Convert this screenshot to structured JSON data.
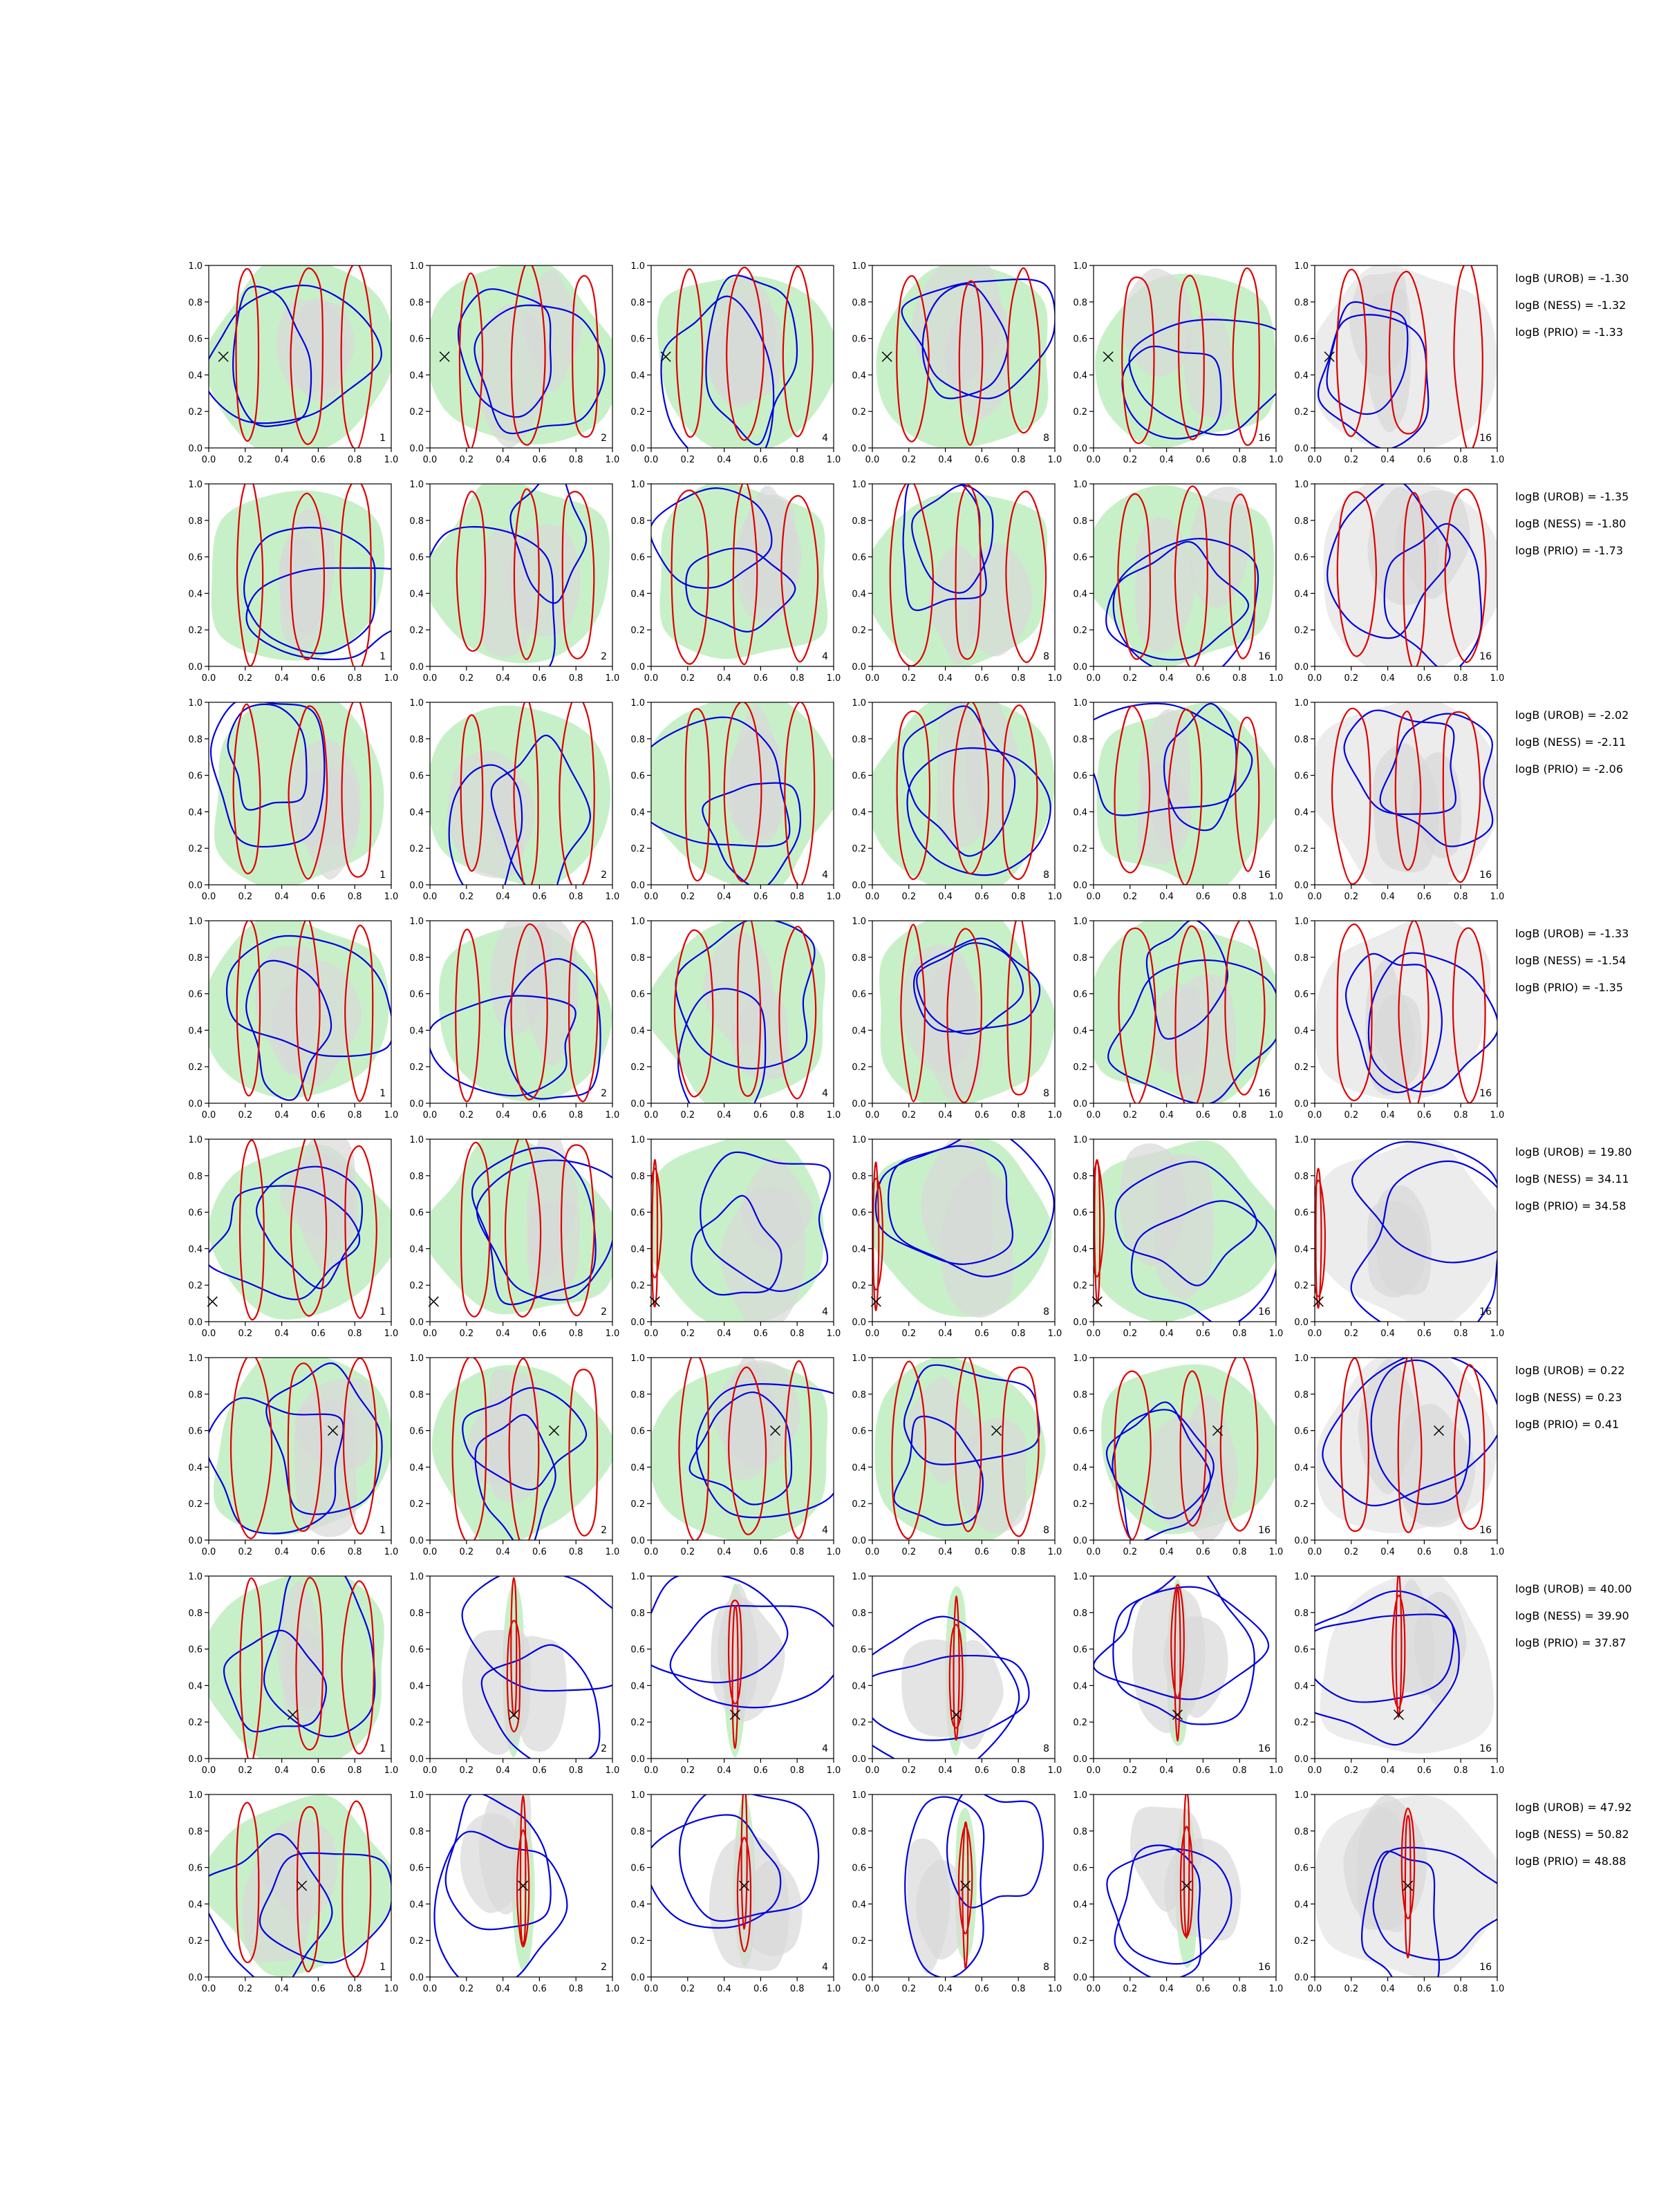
{
  "chart_data": {
    "type": "contour-grid",
    "rows": 8,
    "cols": 6,
    "xlim": [
      0.0,
      1.0
    ],
    "ylim": [
      0.0,
      1.0
    ],
    "x_ticks": [
      "0.0",
      "0.2",
      "0.4",
      "0.6",
      "0.8",
      "1.0"
    ],
    "y_ticks": [
      "0.0",
      "0.2",
      "0.4",
      "0.6",
      "0.8",
      "1.0"
    ],
    "panel_tags": [
      "1",
      "2",
      "4",
      "8",
      "16",
      "16"
    ],
    "colors": {
      "fill_green": "#c8f0c8",
      "fill_grey": "#d9d9d9",
      "fill_light_grey": "#ececec",
      "contour_blue": "#0000dd",
      "contour_red": "#dd0000"
    },
    "row_annotations": [
      [
        "logB (UROB) = -1.30",
        "logB (NESS) = -1.32",
        "logB (PRIO) = -1.33"
      ],
      [
        "logB (UROB) = -1.35",
        "logB (NESS) = -1.80",
        "logB (PRIO) = -1.73"
      ],
      [
        "logB (UROB) = -2.02",
        "logB (NESS) = -2.11",
        "logB (PRIO) = -2.06"
      ],
      [
        "logB (UROB) = -1.33",
        "logB (NESS) = -1.54",
        "logB (PRIO) = -1.35"
      ],
      [
        "logB (UROB) = 19.80",
        "logB (NESS) = 34.11",
        "logB (PRIO) = 34.58"
      ],
      [
        "logB (UROB) = 0.22",
        "logB (NESS) = 0.23",
        "logB (PRIO) = 0.41"
      ],
      [
        "logB (UROB) = 40.00",
        "logB (NESS) = 39.90",
        "logB (PRIO) = 37.87"
      ],
      [
        "logB (UROB) = 47.92",
        "logB (NESS) = 50.82",
        "logB (PRIO) = 48.88"
      ]
    ],
    "true_points": [
      {
        "x": 0.08,
        "y": 0.5
      },
      null,
      null,
      null,
      {
        "x": 0.02,
        "y": 0.11
      },
      {
        "x": 0.68,
        "y": 0.6
      },
      {
        "x": 0.46,
        "y": 0.24
      },
      {
        "x": 0.51,
        "y": 0.5
      }
    ]
  }
}
